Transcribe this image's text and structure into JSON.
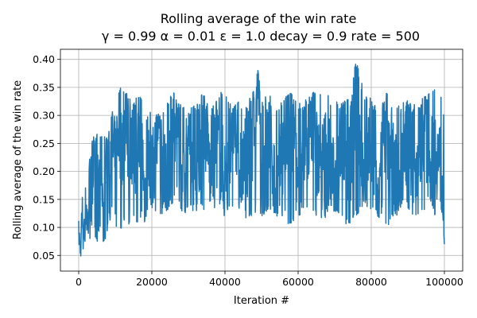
{
  "chart_data": {
    "type": "line",
    "title": "Rolling average of the win rate",
    "subtitle": "γ = 0.99 α = 0.01 ε = 1.0 decay = 0.9 rate = 500",
    "xlabel": "Iteration #",
    "ylabel": "Rolling average of the win rate",
    "xlim": [
      -5000,
      105000
    ],
    "ylim": [
      0.022,
      0.418
    ],
    "xticks": [
      0,
      20000,
      40000,
      60000,
      80000,
      100000
    ],
    "xtick_labels": [
      "0",
      "20000",
      "40000",
      "60000",
      "80000",
      "100000"
    ],
    "yticks": [
      0.05,
      0.1,
      0.15,
      0.2,
      0.25,
      0.3,
      0.35,
      0.4
    ],
    "ytick_labels": [
      "0.05",
      "0.10",
      "0.15",
      "0.20",
      "0.25",
      "0.30",
      "0.35",
      "0.40"
    ],
    "grid": true,
    "color": "#1f77b4",
    "series": [
      {
        "x": [
          0,
          500,
          1000,
          1500,
          2000,
          2500,
          3000,
          3500,
          4000,
          5000,
          6000,
          7000,
          7500,
          8000,
          9000,
          10000,
          11000,
          12000,
          13000,
          14000,
          15000,
          16000,
          17000,
          18000,
          19000,
          20000,
          22000,
          24000,
          26000,
          28000,
          30000,
          32000,
          34000,
          36000,
          38000,
          40000,
          42000,
          44000,
          46000,
          48000,
          49000,
          50000,
          52000,
          54000,
          56000,
          58000,
          60000,
          62000,
          64000,
          66000,
          68000,
          70000,
          72000,
          74000,
          76000,
          78000,
          80000,
          82000,
          84000,
          86000,
          88000,
          90000,
          92000,
          94000,
          96000,
          98000,
          99500,
          100000
        ],
        "y": [
          0.09,
          0.06,
          0.12,
          0.08,
          0.15,
          0.1,
          0.18,
          0.12,
          0.22,
          0.14,
          0.24,
          0.11,
          0.18,
          0.22,
          0.27,
          0.2,
          0.3,
          0.24,
          0.33,
          0.18,
          0.27,
          0.22,
          0.3,
          0.15,
          0.23,
          0.2,
          0.26,
          0.17,
          0.28,
          0.2,
          0.24,
          0.16,
          0.3,
          0.21,
          0.25,
          0.18,
          0.29,
          0.2,
          0.23,
          0.28,
          0.35,
          0.19,
          0.26,
          0.16,
          0.24,
          0.29,
          0.18,
          0.22,
          0.31,
          0.19,
          0.25,
          0.17,
          0.27,
          0.21,
          0.33,
          0.2,
          0.24,
          0.15,
          0.28,
          0.21,
          0.19,
          0.26,
          0.18,
          0.29,
          0.21,
          0.24,
          0.18,
          0.08
        ],
        "upper_envelope": [
          0.13,
          0.09,
          0.17,
          0.12,
          0.21,
          0.23,
          0.23,
          0.25,
          0.26,
          0.28,
          0.26,
          0.28,
          0.26,
          0.26,
          0.3,
          0.34,
          0.34,
          0.36,
          0.34,
          0.33,
          0.32,
          0.34,
          0.33,
          0.31,
          0.3,
          0.32,
          0.3,
          0.33,
          0.34,
          0.32,
          0.31,
          0.32,
          0.34,
          0.31,
          0.34,
          0.35,
          0.31,
          0.33,
          0.32,
          0.35,
          0.38,
          0.33,
          0.34,
          0.32,
          0.33,
          0.34,
          0.32,
          0.33,
          0.34,
          0.35,
          0.34,
          0.33,
          0.32,
          0.34,
          0.4,
          0.34,
          0.33,
          0.32,
          0.34,
          0.33,
          0.32,
          0.33,
          0.32,
          0.33,
          0.34,
          0.35,
          0.34,
          0.3
        ],
        "lower_envelope": [
          0.05,
          0.04,
          0.06,
          0.05,
          0.06,
          0.04,
          0.08,
          0.07,
          0.09,
          0.07,
          0.1,
          0.06,
          0.08,
          0.1,
          0.12,
          0.1,
          0.09,
          0.1,
          0.12,
          0.1,
          0.11,
          0.09,
          0.12,
          0.11,
          0.13,
          0.13,
          0.12,
          0.13,
          0.14,
          0.12,
          0.13,
          0.13,
          0.13,
          0.14,
          0.13,
          0.12,
          0.12,
          0.13,
          0.11,
          0.12,
          0.13,
          0.12,
          0.13,
          0.12,
          0.12,
          0.09,
          0.12,
          0.13,
          0.12,
          0.11,
          0.12,
          0.13,
          0.12,
          0.09,
          0.12,
          0.13,
          0.12,
          0.12,
          0.09,
          0.11,
          0.12,
          0.13,
          0.11,
          0.12,
          0.13,
          0.11,
          0.13,
          0.07
        ]
      }
    ]
  }
}
